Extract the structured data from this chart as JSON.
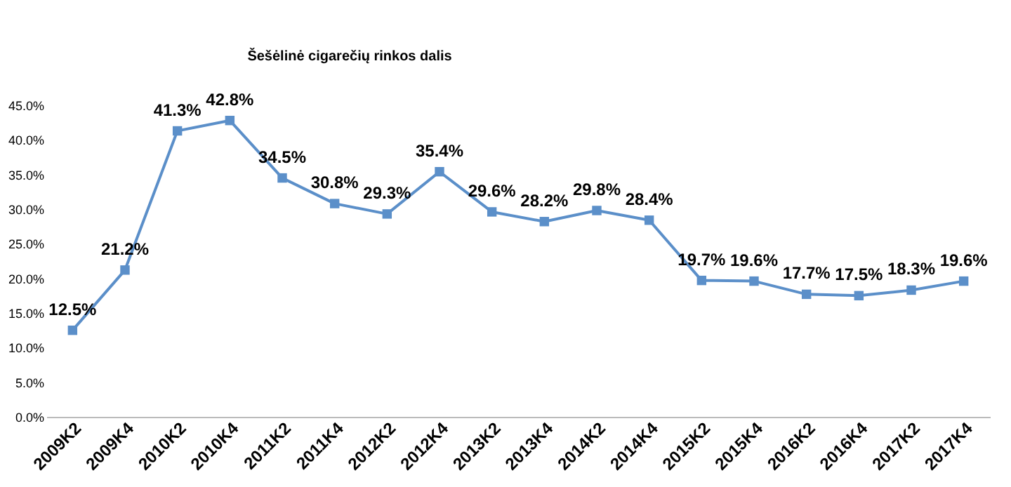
{
  "chart_data": {
    "type": "line",
    "title": "Šešėlinė cigarečių rinkos dalis",
    "categories": [
      "2009K2",
      "2009K4",
      "2010K2",
      "2010K4",
      "2011K2",
      "2011K4",
      "2012K2",
      "2012K4",
      "2013K2",
      "2013K4",
      "2014K2",
      "2014K4",
      "2015K2",
      "2015K4",
      "2016K2",
      "2016K4",
      "2017K2",
      "2017K4"
    ],
    "series": [
      {
        "color": "#5b8fc9",
        "values": [
          12.5,
          21.2,
          41.3,
          42.8,
          34.5,
          30.8,
          29.3,
          35.4,
          29.6,
          28.2,
          29.8,
          28.4,
          19.7,
          19.6,
          17.7,
          17.5,
          18.3,
          19.6
        ],
        "value_labels": [
          "12.5%",
          "21.2%",
          "41.3%",
          "42.8%",
          "34.5%",
          "30.8%",
          "29.3%",
          "35.4%",
          "29.6%",
          "28.2%",
          "29.8%",
          "28.4%",
          "19.7%",
          "19.6%",
          "17.7%",
          "17.5%",
          "18.3%",
          "19.6%"
        ]
      }
    ],
    "ylim": [
      0,
      45
    ],
    "yticks": [
      {
        "value": 0,
        "label": "0.0%"
      },
      {
        "value": 5,
        "label": "5.0%"
      },
      {
        "value": 10,
        "label": "10.0%"
      },
      {
        "value": 15,
        "label": "15.0%"
      },
      {
        "value": 20,
        "label": "20.0%"
      },
      {
        "value": 25,
        "label": "25.0%"
      },
      {
        "value": 30,
        "label": "30.0%"
      },
      {
        "value": 35,
        "label": "35.0%"
      },
      {
        "value": 40,
        "label": "40.0%"
      },
      {
        "value": 45,
        "label": "45.0%"
      }
    ],
    "marker": "square",
    "grid": false
  }
}
